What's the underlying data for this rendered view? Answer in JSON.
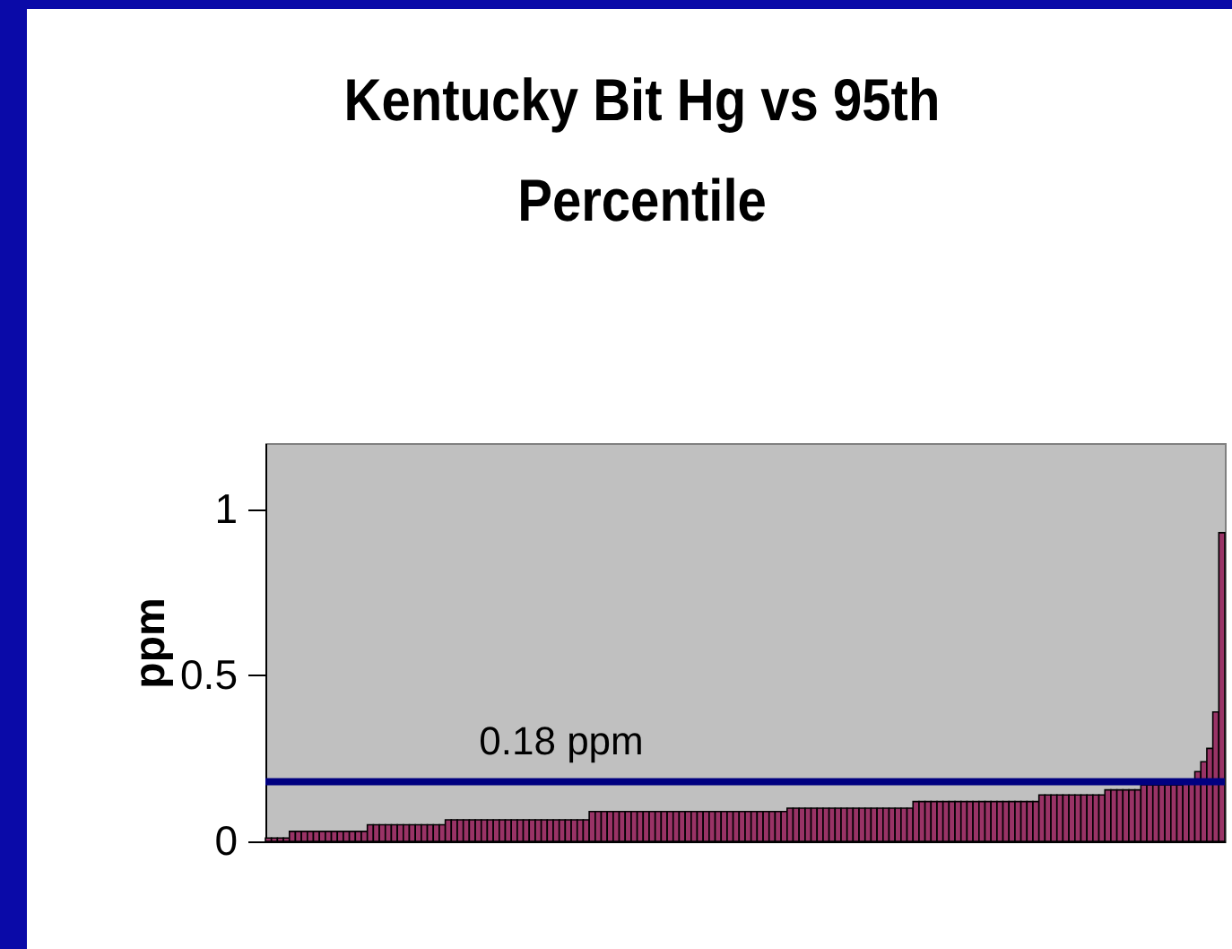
{
  "chart_data": {
    "type": "bar",
    "title": "Kentucky Bit Hg vs 95th Percentile",
    "ylabel": "ppm",
    "categories": [
      null,
      null,
      null,
      null,
      null,
      null,
      null,
      null,
      null,
      null,
      null,
      null,
      null,
      null,
      null,
      null,
      null,
      null,
      null,
      null,
      null,
      null,
      null,
      null,
      null,
      null,
      null,
      null,
      null,
      null,
      null,
      null,
      null,
      null,
      null,
      null,
      null,
      null,
      null,
      null,
      null,
      null,
      null,
      null,
      null,
      null,
      null,
      null,
      null,
      null,
      null,
      null,
      null,
      null,
      null,
      null,
      null,
      null,
      null,
      null,
      null,
      null,
      null,
      null,
      null,
      null,
      null,
      null,
      null,
      null,
      null,
      null,
      null,
      null,
      null,
      null,
      null,
      null,
      null,
      null,
      null,
      null,
      null,
      null,
      null,
      null,
      null,
      null,
      null,
      null,
      null,
      null,
      null,
      null,
      null,
      null,
      null,
      null,
      null,
      null,
      null,
      null,
      null,
      null,
      null,
      null,
      null,
      null,
      null,
      null,
      null,
      null,
      null,
      null,
      null,
      null,
      null,
      null,
      null,
      null,
      null,
      null,
      null,
      null,
      null,
      null,
      null,
      null,
      null,
      null,
      null,
      null,
      null,
      null,
      null,
      null,
      null,
      null,
      null,
      null,
      null,
      null,
      null,
      null,
      null,
      null,
      null,
      null,
      null,
      null,
      null,
      null,
      null,
      null,
      null,
      null,
      null,
      null,
      null,
      null
    ],
    "values": [
      0.01,
      0.01,
      0.01,
      0.01,
      0.03,
      0.03,
      0.03,
      0.03,
      0.03,
      0.03,
      0.03,
      0.03,
      0.03,
      0.03,
      0.03,
      0.03,
      0.03,
      0.05,
      0.05,
      0.05,
      0.05,
      0.05,
      0.05,
      0.05,
      0.05,
      0.05,
      0.05,
      0.05,
      0.05,
      0.05,
      0.065,
      0.065,
      0.065,
      0.065,
      0.065,
      0.065,
      0.065,
      0.065,
      0.065,
      0.065,
      0.065,
      0.065,
      0.065,
      0.065,
      0.065,
      0.065,
      0.065,
      0.065,
      0.065,
      0.065,
      0.065,
      0.065,
      0.065,
      0.065,
      0.09,
      0.09,
      0.09,
      0.09,
      0.09,
      0.09,
      0.09,
      0.09,
      0.09,
      0.09,
      0.09,
      0.09,
      0.09,
      0.09,
      0.09,
      0.09,
      0.09,
      0.09,
      0.09,
      0.09,
      0.09,
      0.09,
      0.09,
      0.09,
      0.09,
      0.09,
      0.09,
      0.09,
      0.09,
      0.09,
      0.09,
      0.09,
      0.09,
      0.1,
      0.1,
      0.1,
      0.1,
      0.1,
      0.1,
      0.1,
      0.1,
      0.1,
      0.1,
      0.1,
      0.1,
      0.1,
      0.1,
      0.1,
      0.1,
      0.1,
      0.1,
      0.1,
      0.1,
      0.1,
      0.12,
      0.12,
      0.12,
      0.12,
      0.12,
      0.12,
      0.12,
      0.12,
      0.12,
      0.12,
      0.12,
      0.12,
      0.12,
      0.12,
      0.12,
      0.12,
      0.12,
      0.12,
      0.12,
      0.12,
      0.12,
      0.14,
      0.14,
      0.14,
      0.14,
      0.14,
      0.14,
      0.14,
      0.14,
      0.14,
      0.14,
      0.14,
      0.155,
      0.155,
      0.155,
      0.155,
      0.155,
      0.155,
      0.17,
      0.17,
      0.17,
      0.17,
      0.17,
      0.17,
      0.17,
      0.18,
      0.18,
      0.21,
      0.24,
      0.28,
      0.39,
      0.93
    ],
    "color": "#993366",
    "ylim": [
      0,
      1.2
    ],
    "yticks": [
      0,
      0.5,
      1
    ],
    "tick_labels": "y",
    "ref_lines": [
      {
        "axis": "y",
        "value": 0.18,
        "label": "0.18 ppm",
        "color": "#000080"
      }
    ]
  }
}
